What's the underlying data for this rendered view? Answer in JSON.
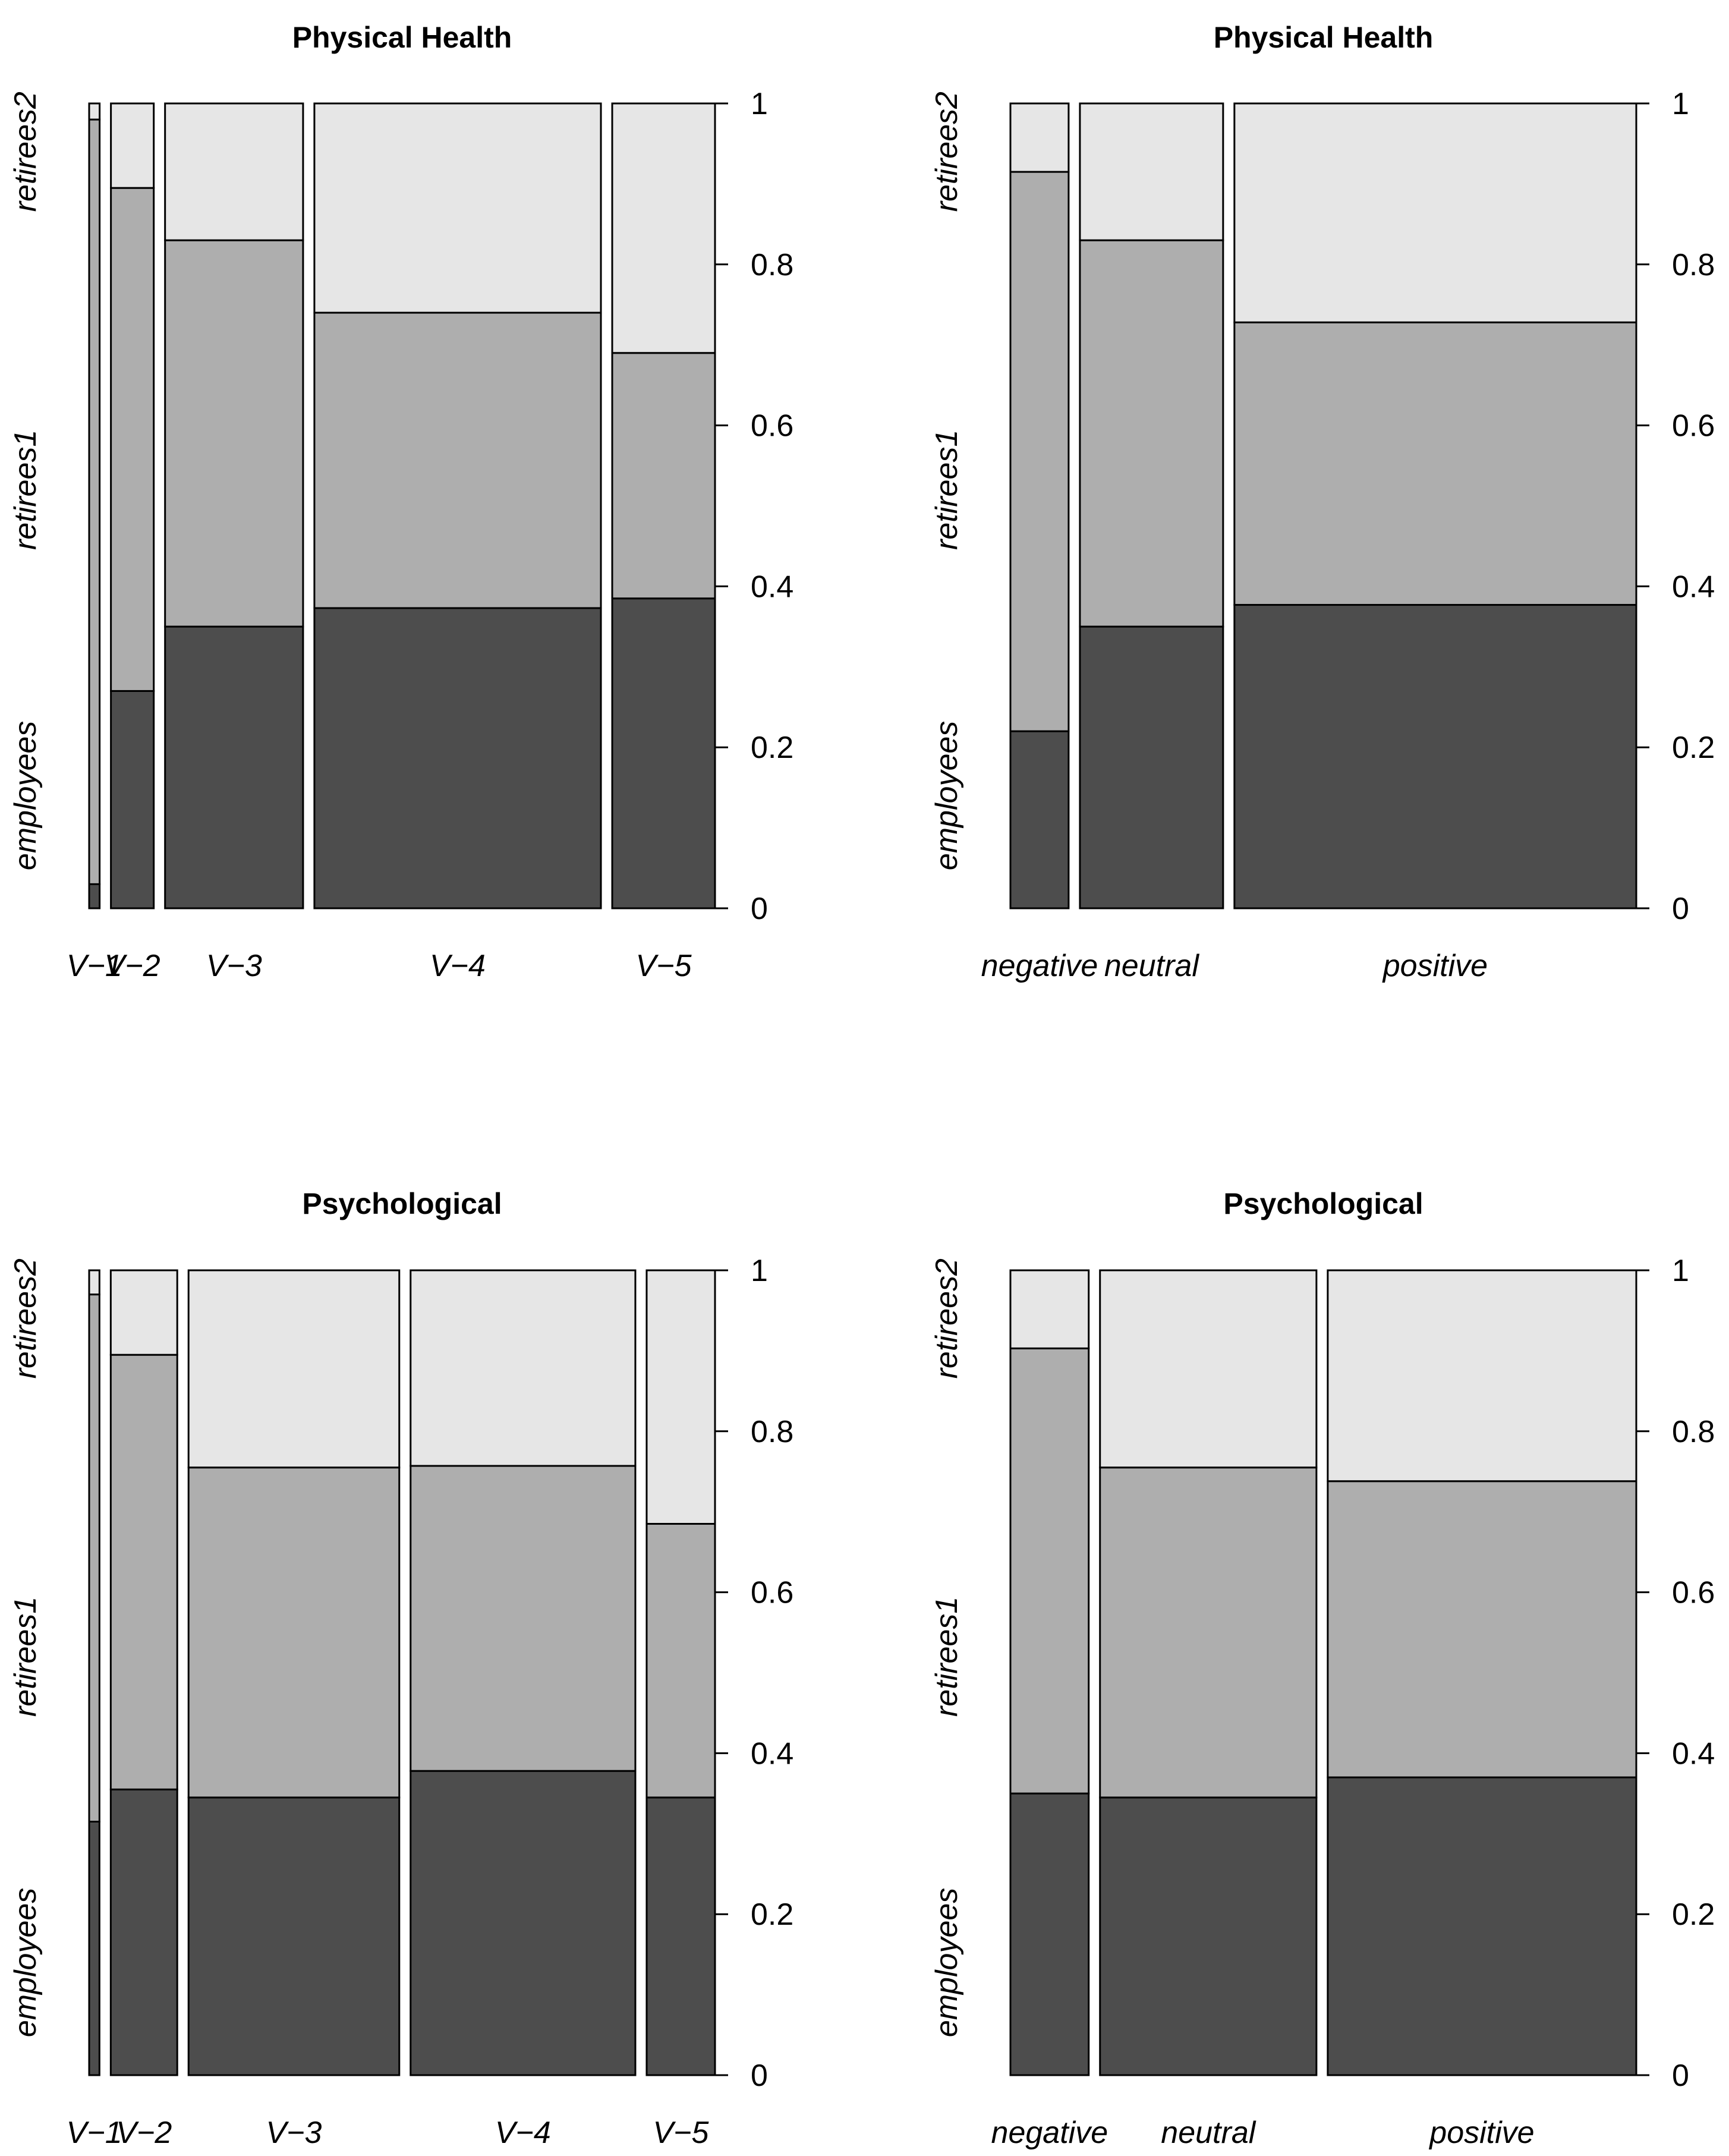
{
  "segment_order": [
    "employees",
    "retirees1",
    "retirees2"
  ],
  "colors": {
    "employees": "#4d4d4d",
    "retirees1": "#aeaeae",
    "retirees2": "#e6e6e6",
    "stroke": "#000000"
  },
  "chart_data": [
    {
      "type": "mosaic",
      "title": "Physical Health",
      "position": "top-left",
      "y_ticks": [
        "0",
        "0.2",
        "0.4",
        "0.6",
        "0.8",
        "1"
      ],
      "ylim": [
        0,
        1
      ],
      "groups": [
        "employees",
        "retirees1",
        "retirees2"
      ],
      "categories": [
        "V−1",
        "V−2",
        "V−3",
        "V−4",
        "V−5"
      ],
      "widths": [
        0.011,
        0.045,
        0.145,
        0.301,
        0.108
      ],
      "proportions": [
        [
          0.03,
          0.95,
          0.02
        ],
        [
          0.27,
          0.625,
          0.105
        ],
        [
          0.35,
          0.48,
          0.17
        ],
        [
          0.373,
          0.367,
          0.26
        ],
        [
          0.385,
          0.305,
          0.31
        ]
      ]
    },
    {
      "type": "mosaic",
      "title": "Physical Health",
      "position": "top-right",
      "y_ticks": [
        "0",
        "0.2",
        "0.4",
        "0.6",
        "0.8",
        "1"
      ],
      "ylim": [
        0,
        1
      ],
      "groups": [
        "employees",
        "retirees1",
        "retirees2"
      ],
      "categories": [
        "negative",
        "neutral",
        "positive"
      ],
      "widths": [
        0.063,
        0.155,
        0.435
      ],
      "proportions": [
        [
          0.22,
          0.695,
          0.085
        ],
        [
          0.35,
          0.48,
          0.17
        ],
        [
          0.377,
          0.351,
          0.272
        ]
      ]
    },
    {
      "type": "mosaic",
      "title": "Psychological",
      "position": "bottom-left",
      "y_ticks": [
        "0",
        "0.2",
        "0.4",
        "0.6",
        "0.8",
        "1"
      ],
      "ylim": [
        0,
        1
      ],
      "groups": [
        "employees",
        "retirees1",
        "retirees2"
      ],
      "categories": [
        "V−1",
        "V−2",
        "V−3",
        "V−4",
        "V−5"
      ],
      "widths": [
        0.011,
        0.071,
        0.225,
        0.24,
        0.073
      ],
      "proportions": [
        [
          0.315,
          0.655,
          0.03
        ],
        [
          0.355,
          0.54,
          0.105
        ],
        [
          0.345,
          0.41,
          0.245
        ],
        [
          0.378,
          0.379,
          0.243
        ],
        [
          0.345,
          0.34,
          0.315
        ]
      ]
    },
    {
      "type": "mosaic",
      "title": "Psychological",
      "position": "bottom-right",
      "y_ticks": [
        "0",
        "0.2",
        "0.4",
        "0.6",
        "0.8",
        "1"
      ],
      "ylim": [
        0,
        1
      ],
      "groups": [
        "employees",
        "retirees1",
        "retirees2"
      ],
      "categories": [
        "negative",
        "neutral",
        "positive"
      ],
      "widths": [
        0.085,
        0.235,
        0.335
      ],
      "proportions": [
        [
          0.35,
          0.553,
          0.097
        ],
        [
          0.345,
          0.41,
          0.245
        ],
        [
          0.37,
          0.368,
          0.262
        ]
      ]
    }
  ]
}
